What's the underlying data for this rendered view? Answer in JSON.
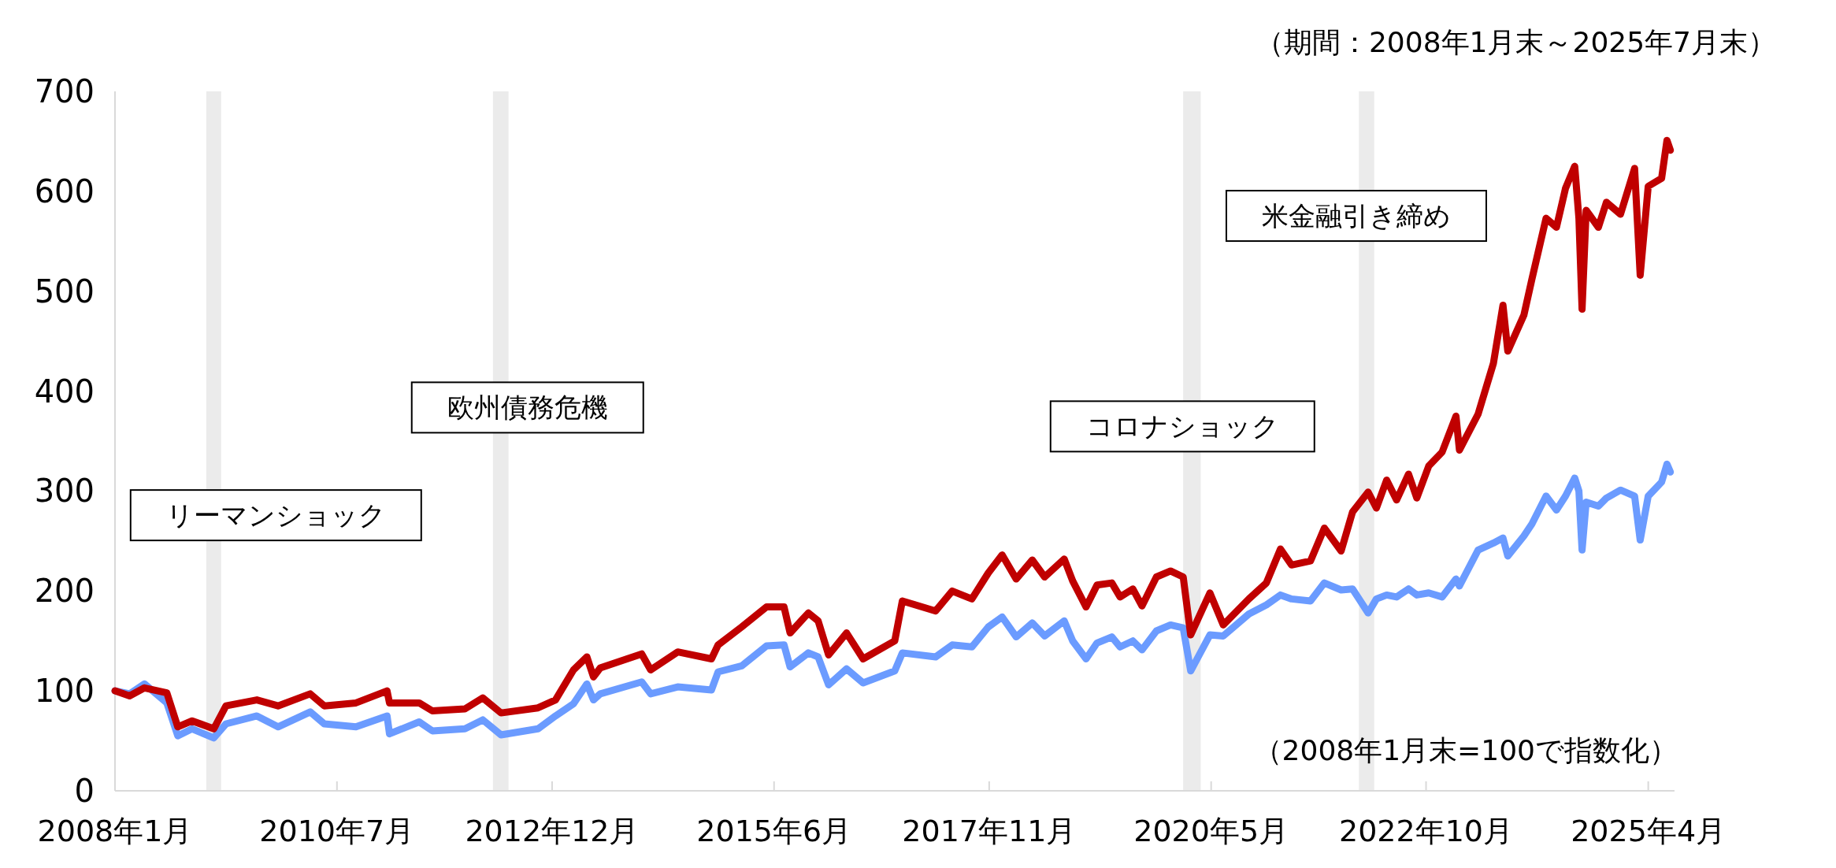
{
  "chart_data": {
    "type": "line",
    "x": [
      "2008-01",
      "2008-03",
      "2008-05",
      "2008-08",
      "2008-09-15",
      "2008-11-13",
      "2009-02-10",
      "2009-04",
      "2009-08-06",
      "2009-11",
      "2010-03-13",
      "2010-05-10",
      "2010-09-17",
      "2011-01-23",
      "2011-02-02",
      "2011-06-04",
      "2011-07-28",
      "2011-12-09",
      "2012-02-20",
      "2012-05-05",
      "2012-10-04",
      "2012-12-15",
      "2013-02-27",
      "2013-04-23",
      "2013-05-20",
      "2013-06-17",
      "2013-12-04",
      "2014-01-10",
      "2014-05-01",
      "2014-09-17",
      "2014-10-14",
      "2015-01-19",
      "2015-05-01",
      "2015-07-12",
      "2015-08-06",
      "2015-10-20",
      "2015-11-29",
      "2016-01-11",
      "2016-03-25",
      "2016-06-01",
      "2016-10-09",
      "2016-11-09",
      "2017-03-26",
      "2017-06-02",
      "2017-08-22",
      "2017-10-28",
      "2017-12-24",
      "2018-02-20",
      "2018-04-27",
      "2018-06-17",
      "2018-09-05",
      "2018-10-10",
      "2018-12-04",
      "2019-01-18",
      "2019-03-20",
      "2019-04-23",
      "2019-06-14",
      "2019-07-22",
      "2019-09-19",
      "2019-11-16",
      "2020-01-07",
      "2020-02-07",
      "2020-04-26",
      "2020-06-20",
      "2020-10-03",
      "2020-12-14",
      "2021-02-10",
      "2021-03-27",
      "2021-06-13",
      "2021-08-09",
      "2021-10-17",
      "2021-12-03",
      "2022-02-05",
      "2022-03-11",
      "2022-04-22",
      "2022-06-02",
      "2022-07-21",
      "2022-08-24",
      "2022-10-12",
      "2022-12-06",
      "2023-02-01",
      "2023-02-15",
      "2023-05-03",
      "2023-07-05",
      "2023-08-13",
      "2023-09-02",
      "2023-11-07",
      "2023-12-10",
      "2024-02-06",
      "2024-03-20",
      "2024-04-26",
      "2024-06-03",
      "2024-06-20",
      "2024-07-03",
      "2024-07-20",
      "2024-09-08",
      "2024-10-11",
      "2024-12-08",
      "2025-02-04",
      "2025-02-27",
      "2025-04-01",
      "2025-05-26",
      "2025-06-17",
      "2025-07-01"
    ],
    "series": [
      {
        "color": "#c00000",
        "values": [
          100,
          95,
          103,
          98,
          64,
          70,
          62,
          85,
          91,
          85,
          97,
          85,
          88,
          100,
          88,
          88,
          80,
          82,
          93,
          78,
          83,
          91,
          121,
          134,
          114,
          123,
          137,
          121,
          139,
          132,
          146,
          164,
          184,
          184,
          158,
          178,
          170,
          136,
          158,
          132,
          150,
          190,
          180,
          200,
          192,
          218,
          236,
          212,
          231,
          214,
          232,
          210,
          184,
          206,
          208,
          194,
          202,
          185,
          214,
          220,
          214,
          156,
          198,
          166,
          192,
          208,
          242,
          226,
          230,
          263,
          240,
          279,
          299,
          283,
          311,
          291,
          317,
          293,
          325,
          339,
          375,
          341,
          377,
          428,
          486,
          440,
          476,
          512,
          573,
          564,
          603,
          625,
          573,
          482,
          581,
          564,
          589,
          577,
          623,
          516,
          605,
          613,
          651,
          641
        ]
      },
      {
        "color": "#6b9bff",
        "values": [
          100,
          97,
          107,
          88,
          55,
          62,
          53,
          67,
          75,
          64,
          79,
          67,
          64,
          75,
          57,
          69,
          60,
          62,
          71,
          56,
          62,
          75,
          87,
          107,
          91,
          97,
          109,
          97,
          104,
          101,
          119,
          125,
          145,
          146,
          124,
          138,
          134,
          106,
          122,
          108,
          120,
          138,
          134,
          146,
          144,
          164,
          174,
          154,
          168,
          155,
          170,
          150,
          132,
          148,
          154,
          144,
          150,
          141,
          160,
          166,
          163,
          120,
          156,
          155,
          177,
          186,
          196,
          192,
          190,
          208,
          201,
          202,
          178,
          192,
          196,
          194,
          202,
          196,
          198,
          194,
          212,
          205,
          241,
          248,
          253,
          235,
          255,
          267,
          295,
          281,
          295,
          313,
          300,
          241,
          289,
          285,
          293,
          301,
          295,
          251,
          295,
          309,
          327,
          319
        ]
      }
    ],
    "xlim": [
      "2008-01",
      "2025-07-18"
    ],
    "xticks": [
      {
        "value": "2008-01",
        "label": "2008年1月"
      },
      {
        "value": "2010-07",
        "label": "2010年7月"
      },
      {
        "value": "2012-12",
        "label": "2012年12月"
      },
      {
        "value": "2015-06",
        "label": "2015年6月"
      },
      {
        "value": "2017-11",
        "label": "2017年11月"
      },
      {
        "value": "2020-05",
        "label": "2020年5月"
      },
      {
        "value": "2022-10",
        "label": "2022年10月"
      },
      {
        "value": "2025-04",
        "label": "2025年4月"
      }
    ],
    "ylim": [
      0,
      700
    ],
    "yticks": [
      0,
      100,
      200,
      300,
      400,
      500,
      600,
      700
    ],
    "bands": [
      {
        "axis": "x",
        "from": "2009-01-10",
        "to": "2009-03-12",
        "label": "リーマンショック",
        "color": "#ebebeb"
      },
      {
        "axis": "x",
        "from": "2012-04-02",
        "to": "2012-06-05",
        "label": "欧州債務危機",
        "color": "#ebebeb"
      },
      {
        "axis": "x",
        "from": "2020-01-07",
        "to": "2020-03-19",
        "label": "コロナショック",
        "color": "#ebebeb"
      },
      {
        "axis": "x",
        "from": "2021-12-29",
        "to": "2022-03-02",
        "label": "米金融引き締め",
        "color": "#ebebeb"
      }
    ],
    "annotations": [
      "（期間：2008年1月末～2025年7月末）",
      "（2008年1月末=100で指数化）"
    ]
  }
}
